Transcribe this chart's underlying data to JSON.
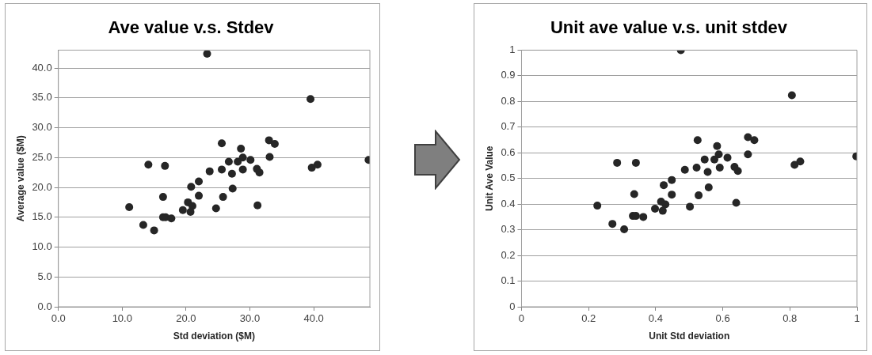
{
  "chart_data": [
    {
      "type": "scatter",
      "title": "Ave value v.s. Stdev",
      "xlabel": "Std deviation ($M)",
      "ylabel": "Average value ($M)",
      "x": [
        23.3,
        39.5,
        48.6,
        39.7,
        40.6,
        33.0,
        33.9,
        33.1,
        25.6,
        28.6,
        28.9,
        30.1,
        26.7,
        28.1,
        28.9,
        25.6,
        23.7,
        27.2,
        31.1,
        31.5,
        27.3,
        22.0,
        20.8,
        22.0,
        25.8,
        16.4,
        20.3,
        21.0,
        19.5,
        20.7,
        24.7,
        31.2,
        11.1,
        16.4,
        16.8,
        17.7,
        13.3,
        15.0,
        14.1,
        16.7
      ],
      "values": [
        42.4,
        34.8,
        24.6,
        23.3,
        23.8,
        27.9,
        27.3,
        25.1,
        27.4,
        26.5,
        25.0,
        24.6,
        24.3,
        24.3,
        23.0,
        23.0,
        22.7,
        22.3,
        23.1,
        22.5,
        19.8,
        21.0,
        20.1,
        18.6,
        18.4,
        18.4,
        17.5,
        16.9,
        16.2,
        15.9,
        16.5,
        17.0,
        16.7,
        15.0,
        15.0,
        14.8,
        13.7,
        12.8,
        23.8,
        23.6
      ],
      "color": "#262626",
      "marker": "circle",
      "grid": "y",
      "legend": false,
      "xlim": [
        0,
        48.8
      ],
      "xticks": [
        {
          "value": 0,
          "label": "0.0"
        },
        {
          "value": 10,
          "label": "10.0"
        },
        {
          "value": 20,
          "label": "20.0"
        },
        {
          "value": 30,
          "label": "30.0"
        },
        {
          "value": 40,
          "label": "40.0"
        }
      ],
      "ylim": [
        0,
        43
      ],
      "yticks": [
        {
          "value": 0,
          "label": "0.0"
        },
        {
          "value": 5,
          "label": "5.0"
        },
        {
          "value": 10,
          "label": "10.0"
        },
        {
          "value": 15,
          "label": "15.0"
        },
        {
          "value": 20,
          "label": "20.0"
        },
        {
          "value": 25,
          "label": "25.0"
        },
        {
          "value": 30,
          "label": "30.0"
        },
        {
          "value": 35,
          "label": "35.0"
        },
        {
          "value": 40,
          "label": "40.0"
        }
      ]
    },
    {
      "type": "scatter",
      "title": "Unit ave value v.s. unit stdev",
      "xlabel": "Unit Std deviation",
      "ylabel": "Unit Ave Value",
      "x": [
        0.475,
        0.806,
        0.998,
        0.814,
        0.831,
        0.675,
        0.694,
        0.675,
        0.525,
        0.583,
        0.588,
        0.614,
        0.546,
        0.575,
        0.591,
        0.522,
        0.487,
        0.555,
        0.635,
        0.645,
        0.558,
        0.448,
        0.424,
        0.448,
        0.528,
        0.336,
        0.416,
        0.429,
        0.398,
        0.421,
        0.502,
        0.64,
        0.226,
        0.332,
        0.341,
        0.363,
        0.271,
        0.306,
        0.285,
        0.341
      ],
      "values": [
        1.0,
        0.824,
        0.586,
        0.553,
        0.566,
        0.661,
        0.649,
        0.594,
        0.649,
        0.626,
        0.594,
        0.581,
        0.574,
        0.574,
        0.542,
        0.542,
        0.534,
        0.525,
        0.545,
        0.529,
        0.465,
        0.494,
        0.474,
        0.437,
        0.434,
        0.439,
        0.41,
        0.399,
        0.382,
        0.374,
        0.39,
        0.405,
        0.394,
        0.354,
        0.354,
        0.35,
        0.323,
        0.302,
        0.561,
        0.561
      ],
      "color": "#262626",
      "marker": "circle",
      "grid": "y",
      "legend": false,
      "xlim": [
        0,
        1
      ],
      "xticks": [
        0,
        0.2,
        0.4,
        0.6,
        0.8,
        1
      ],
      "ylim": [
        0,
        1
      ],
      "yticks": [
        0,
        0.1,
        0.2,
        0.3,
        0.4,
        0.5,
        0.6,
        0.7,
        0.8,
        0.9,
        1
      ]
    }
  ]
}
